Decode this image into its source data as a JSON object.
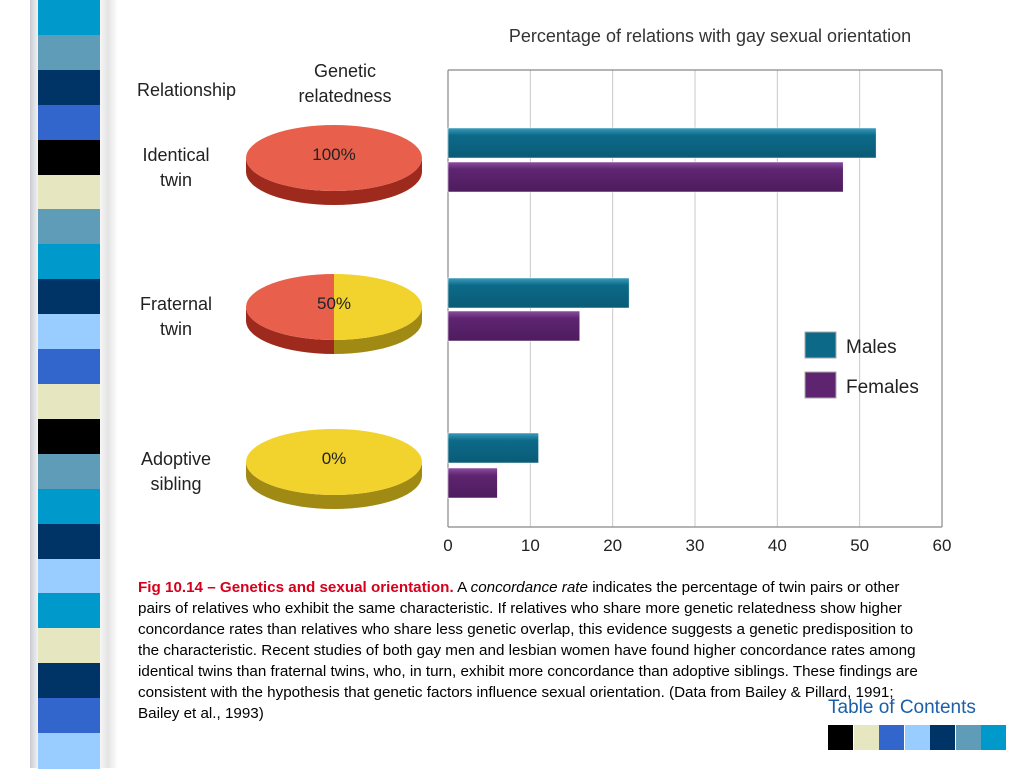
{
  "slide": {
    "caption": {
      "fig_label": "Fig 10.14 – Genetics and sexual orientation.",
      "a_word": "A",
      "term": "concordance rate",
      "body": "indicates the percentage of twin pairs or other pairs of relatives who exhibit the same characteristic. If relatives who share more genetic relatedness show higher concordance rates than relatives who share less genetic overlap, this evidence suggests a genetic predisposition to the characteristic. Recent studies of both gay men and lesbian women have found higher concordance rates among identical twins than fraternal twins, who, in turn, exhibit more concordance than adoptive siblings. These findings are consistent with the hypothesis that genetic factors influence sexual orientation. (Data from Bailey & Pillard, 1991; Bailey et al., 1993)"
    },
    "toc_label": "Table of Contents",
    "toc_colors": [
      "#000000",
      "#e6e6c0",
      "#3366cc",
      "#99ccff",
      "#003366",
      "#5f9cb8",
      "#0099cc"
    ],
    "strip_colors": [
      "#0099cc",
      "#5f9cb8",
      "#003366",
      "#3366cc",
      "#000000",
      "#e6e6c0",
      "#5f9cb8",
      "#0099cc",
      "#003366",
      "#99ccff",
      "#3366cc",
      "#e6e6c0",
      "#000000",
      "#5f9cb8",
      "#0099cc",
      "#003366",
      "#99ccff",
      "#0099cc",
      "#e6e6c0",
      "#003366",
      "#3366cc",
      "#99ccff"
    ]
  },
  "chart_data": {
    "type": "bar",
    "orientation": "horizontal",
    "title": "Percentage of relations with gay sexual orientation",
    "header_relationship": "Relationship",
    "header_genetic_line1": "Genetic",
    "header_genetic_line2": "relatedness",
    "categories": [
      {
        "line1": "Identical",
        "line2": "twin",
        "relatedness": "100%",
        "relatedness_value": 100
      },
      {
        "line1": "Fraternal",
        "line2": "twin",
        "relatedness": "50%",
        "relatedness_value": 50
      },
      {
        "line1": "Adoptive",
        "line2": "sibling",
        "relatedness": "0%",
        "relatedness_value": 0
      }
    ],
    "series": [
      {
        "name": "Males",
        "color": "#0c6a88",
        "values": [
          52,
          22,
          11
        ]
      },
      {
        "name": "Females",
        "color": "#5e2470",
        "values": [
          48,
          16,
          6
        ]
      }
    ],
    "xlim": [
      0,
      60
    ],
    "xticks": [
      0,
      10,
      20,
      30,
      40,
      50,
      60
    ],
    "grid": true,
    "legend": "right",
    "pie_colors": {
      "related": "#e8604c",
      "unrelated": "#f2d22c"
    }
  }
}
